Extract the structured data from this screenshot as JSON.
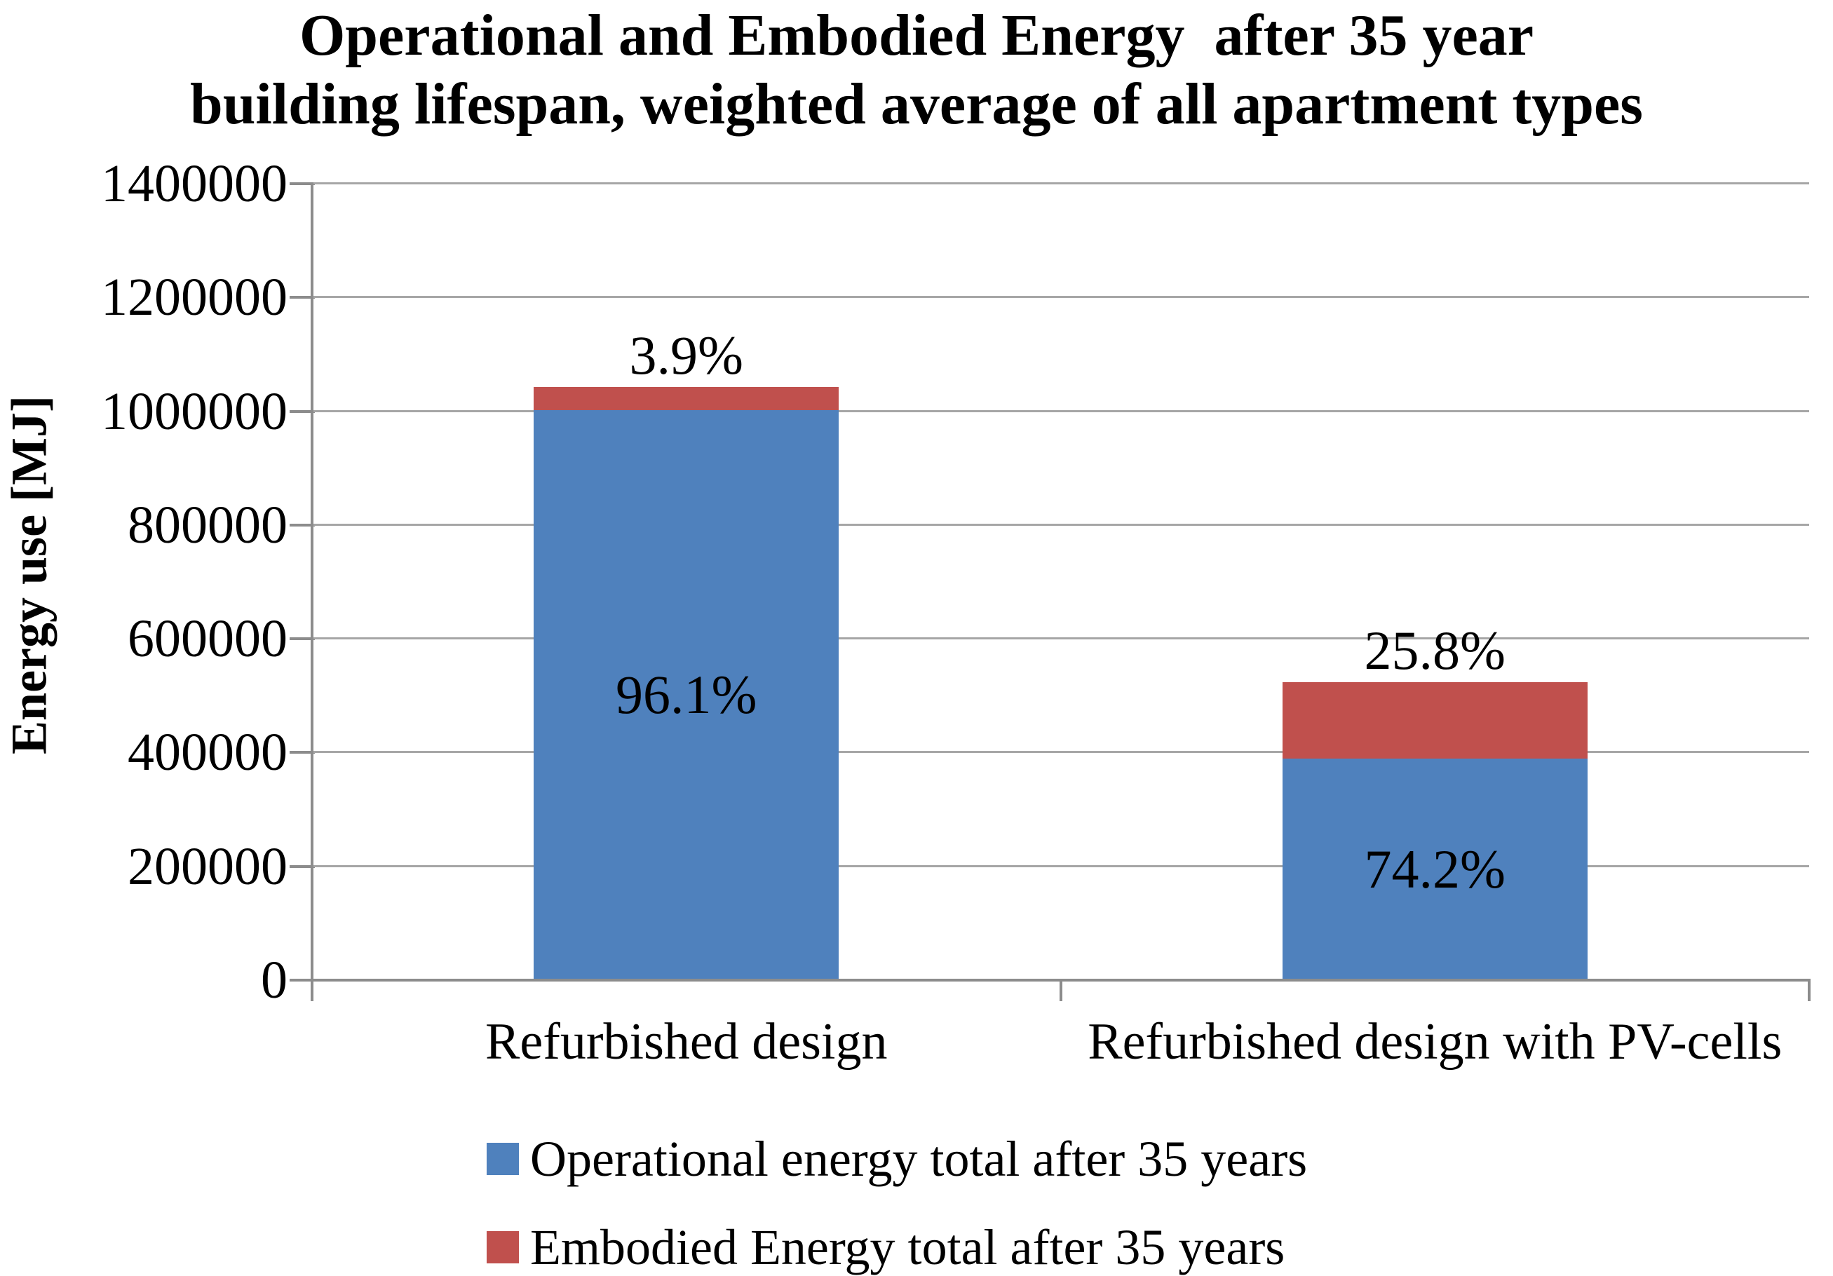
{
  "chart_data": {
    "type": "bar",
    "stacked": true,
    "title": "Operational and Embodied Energy  after 35 year building lifespan, weighted average of all apartment types",
    "title_lines": [
      "Operational and Embodied Energy  after 35 year",
      "building lifespan, weighted average of all apartment types"
    ],
    "ylabel": "Energy use [MJ]",
    "ylim": [
      0,
      1400000
    ],
    "yticks": [
      0,
      200000,
      400000,
      600000,
      800000,
      1000000,
      1200000,
      1400000
    ],
    "grid": true,
    "legend_position": "bottom",
    "categories": [
      "Refurbished design",
      "Refurbished design with PV-cells"
    ],
    "series": [
      {
        "name": "Operational energy total after 35 years",
        "color": "#4F81BD",
        "values": [
          1002000,
          390000
        ],
        "data_labels": [
          "96.1%",
          "74.2%"
        ],
        "label_placement": "inside"
      },
      {
        "name": "Embodied Energy total after 35 years",
        "color": "#C0504D",
        "values": [
          41000,
          134000
        ],
        "data_labels": [
          "3.9%",
          "25.8%"
        ],
        "label_placement": "above-stack"
      }
    ],
    "colors": {
      "grid": "#A6A6A6",
      "axis": "#8C8C8C",
      "text": "#000000",
      "background": "#FFFFFF"
    }
  }
}
